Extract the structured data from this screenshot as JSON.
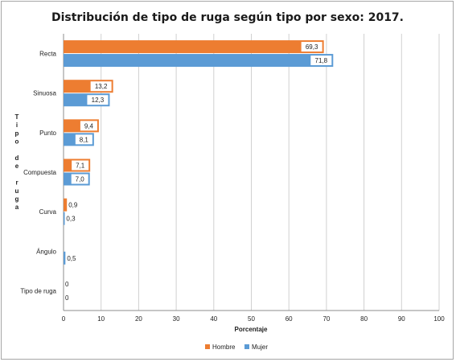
{
  "chart_data": {
    "type": "bar",
    "orientation": "horizontal",
    "title": "Distribución de tipo de ruga según tipo por sexo: 2017.",
    "xlabel": "Porcentaje",
    "ylabel": "Tipo de ruga",
    "xlim": [
      0,
      100
    ],
    "xticks": [
      0,
      10,
      20,
      30,
      40,
      50,
      60,
      70,
      80,
      90,
      100
    ],
    "grid": "vertical",
    "legend_position": "bottom",
    "categories": [
      "Recta",
      "Sinuosa",
      "Punto",
      "Compuesta",
      "Curva",
      "Ángulo",
      "Tipo de ruga"
    ],
    "series": [
      {
        "name": "Hombre",
        "color": "#ED7D31",
        "values": [
          69.3,
          13.2,
          9.4,
          7.1,
          0.9,
          null,
          0
        ],
        "labels": [
          "69,3",
          "13,2",
          "9,4",
          "7,1",
          "0,9",
          "",
          "0"
        ]
      },
      {
        "name": "Mujer",
        "color": "#5B9BD5",
        "values": [
          71.8,
          12.3,
          8.1,
          7.0,
          0.3,
          0.5,
          0
        ],
        "labels": [
          "71,8",
          "12,3",
          "8,1",
          "7,0",
          "0,3",
          "0,5",
          "0"
        ]
      }
    ]
  }
}
